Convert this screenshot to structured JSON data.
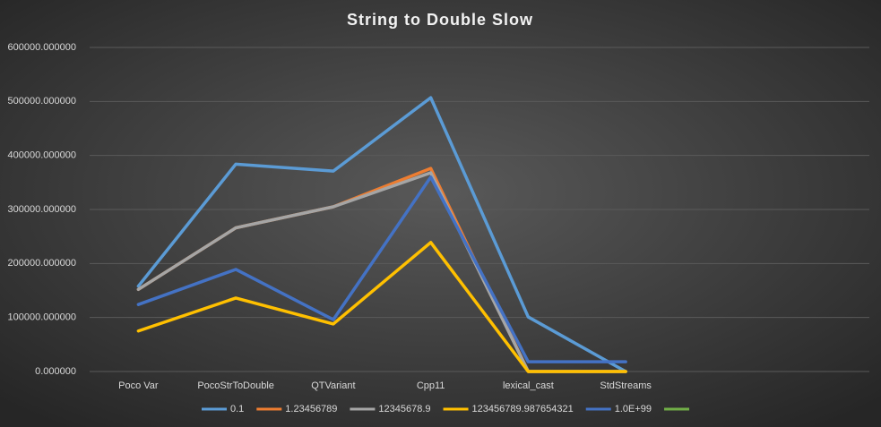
{
  "chart_data": {
    "type": "line",
    "title": "String to Double Slow",
    "categories": [
      "Poco Var",
      "PocoStrToDouble",
      "QTVariant",
      "Cpp11",
      "lexical_cast",
      "StdStreams",
      null,
      null
    ],
    "series": [
      {
        "name": "0.1",
        "color": "#5b9bd5",
        "values": [
          158000,
          384000,
          371000,
          507000,
          101000,
          0,
          null,
          null
        ]
      },
      {
        "name": "1.23456789",
        "color": "#ed7d31",
        "values": [
          152000,
          266000,
          305000,
          376000,
          0,
          0,
          null,
          null
        ]
      },
      {
        "name": "12345678.9",
        "color": "#a5a5a5",
        "values": [
          152000,
          266000,
          305000,
          368000,
          0,
          0,
          null,
          null
        ]
      },
      {
        "name": "123456789.987654321",
        "color": "#ffc000",
        "values": [
          75000,
          136000,
          88000,
          239000,
          0,
          0,
          null,
          null
        ]
      },
      {
        "name": "1.0E+99",
        "color": "#4472c4",
        "values": [
          124000,
          189000,
          96000,
          360000,
          18000,
          18000,
          null,
          null
        ]
      },
      {
        "name": null,
        "color": "#70ad47",
        "values": [
          null,
          null,
          null,
          null,
          null,
          null,
          null,
          null
        ]
      }
    ],
    "ylim": [
      0,
      600000
    ],
    "yticks": [
      {
        "value": 0,
        "label": "0.000000"
      },
      {
        "value": 100000,
        "label": "100000.000000"
      },
      {
        "value": 200000,
        "label": "200000.000000"
      },
      {
        "value": 300000,
        "label": "300000.000000"
      },
      {
        "value": 400000,
        "label": "400000.000000"
      },
      {
        "value": 500000,
        "label": "500000.000000"
      },
      {
        "value": 600000,
        "label": "600000.000000"
      }
    ],
    "grid": true,
    "legend": "bottom"
  }
}
